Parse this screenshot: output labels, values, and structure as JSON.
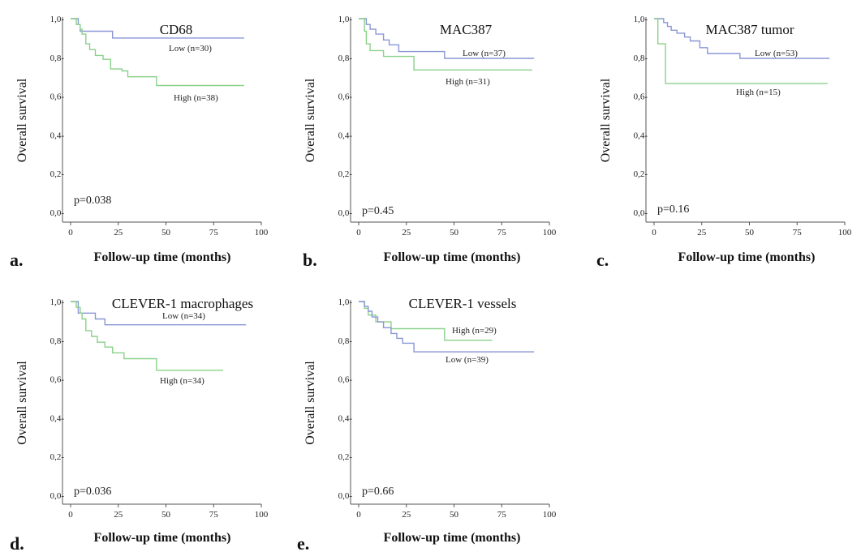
{
  "colors": {
    "low": "#8a96d6",
    "high": "#8ad18a",
    "axis": "#555555"
  },
  "chart_data": [
    {
      "type": "line",
      "panel_letter": "a.",
      "title": "CD68",
      "xlabel": "Follow-up time (months)",
      "ylabel": "Overall survival",
      "xlim": [
        0,
        100
      ],
      "ylim": [
        0,
        1
      ],
      "xticks": [
        "0",
        "25",
        "50",
        "75",
        "100"
      ],
      "yticks": [
        "0,0-",
        "0,2-",
        "0,4-",
        "0,6-",
        "0,8-",
        "1,0-"
      ],
      "p_value": "p=0.038",
      "series": [
        {
          "name": "Low (n=30)",
          "key": "low",
          "x": [
            0,
            4,
            5,
            22,
            91
          ],
          "y": [
            1.0,
            0.97,
            0.935,
            0.9,
            0.9
          ]
        },
        {
          "name": "High (n=38)",
          "key": "high",
          "x": [
            0,
            3,
            5,
            6,
            8,
            10,
            13,
            17,
            21,
            27,
            30,
            38,
            45,
            91
          ],
          "y": [
            1.0,
            0.97,
            0.945,
            0.92,
            0.87,
            0.84,
            0.81,
            0.79,
            0.74,
            0.73,
            0.7,
            0.7,
            0.655,
            0.655
          ]
        }
      ]
    },
    {
      "type": "line",
      "panel_letter": "b.",
      "title": "MAC387",
      "xlabel": "Follow-up time (months)",
      "ylabel": "Overall survival",
      "xlim": [
        0,
        100
      ],
      "ylim": [
        0,
        1
      ],
      "xticks": [
        "0",
        "25",
        "50",
        "75",
        "100"
      ],
      "yticks": [
        "0,0-",
        "0,2-",
        "0,4-",
        "0,6-",
        "0,8-",
        "1,0-"
      ],
      "p_value": "p=0.45",
      "series": [
        {
          "name": "Low (n=37)",
          "key": "low",
          "x": [
            0,
            4,
            6,
            9,
            13,
            16,
            21,
            45,
            92
          ],
          "y": [
            1.0,
            0.97,
            0.945,
            0.92,
            0.89,
            0.865,
            0.83,
            0.795,
            0.795
          ]
        },
        {
          "name": "High (n=31)",
          "key": "high",
          "x": [
            0,
            3,
            4,
            6,
            13,
            29,
            91
          ],
          "y": [
            1.0,
            0.935,
            0.87,
            0.835,
            0.805,
            0.735,
            0.735
          ]
        }
      ]
    },
    {
      "type": "line",
      "panel_letter": "c.",
      "title": "MAC387 tumor",
      "xlabel": "Follow-up time (months)",
      "ylabel": "Overall survival",
      "xlim": [
        0,
        100
      ],
      "ylim": [
        0,
        1
      ],
      "xticks": [
        "0",
        "25",
        "50",
        "75",
        "100"
      ],
      "yticks": [
        "0,0-",
        "0,2-",
        "0,4-",
        "0,6-",
        "0,8-",
        "1,0-"
      ],
      "p_value": "p=0.16",
      "series": [
        {
          "name": "Low (n=53)",
          "key": "low",
          "x": [
            0,
            5,
            7,
            9,
            12,
            16,
            19,
            24,
            28,
            45,
            92
          ],
          "y": [
            1.0,
            0.98,
            0.96,
            0.94,
            0.925,
            0.905,
            0.885,
            0.85,
            0.82,
            0.795,
            0.795
          ]
        },
        {
          "name": "High (n=15)",
          "key": "high",
          "x": [
            0,
            2,
            6,
            91
          ],
          "y": [
            1.0,
            0.87,
            0.665,
            0.665
          ]
        }
      ]
    },
    {
      "type": "line",
      "panel_letter": "d.",
      "title": "CLEVER-1 macrophages",
      "xlabel": "Follow-up time (months)",
      "ylabel": "Overall survival",
      "xlim": [
        0,
        100
      ],
      "ylim": [
        0,
        1
      ],
      "xticks": [
        "0",
        "25",
        "50",
        "75",
        "100"
      ],
      "yticks": [
        "0,0-",
        "0,2-",
        "0,4-",
        "0,6-",
        "0,8-",
        "1,0-"
      ],
      "p_value": "p=0.036",
      "series": [
        {
          "name": "Low (n=34)",
          "key": "low",
          "x": [
            0,
            4,
            13,
            18,
            92
          ],
          "y": [
            1.0,
            0.94,
            0.91,
            0.88,
            0.88
          ]
        },
        {
          "name": "High (n=34)",
          "key": "high",
          "x": [
            0,
            3,
            5,
            6,
            8,
            11,
            14,
            18,
            22,
            28,
            45,
            80
          ],
          "y": [
            1.0,
            0.97,
            0.94,
            0.91,
            0.85,
            0.82,
            0.79,
            0.765,
            0.735,
            0.705,
            0.645,
            0.645
          ]
        }
      ]
    },
    {
      "type": "line",
      "panel_letter": "e.",
      "title": "CLEVER-1 vessels",
      "xlabel": "Follow-up time (months)",
      "ylabel": "Overall survival",
      "xlim": [
        0,
        100
      ],
      "ylim": [
        0,
        1
      ],
      "xticks": [
        "0",
        "25",
        "50",
        "75",
        "100"
      ],
      "yticks": [
        "0,0-",
        "0,2-",
        "0,4-",
        "0,6-",
        "0,8-",
        "1,0-"
      ],
      "p_value": "p=0.66",
      "series": [
        {
          "name": "High (n=29)",
          "key": "high",
          "x": [
            0,
            3,
            5,
            9,
            17,
            45,
            70
          ],
          "y": [
            1.0,
            0.965,
            0.93,
            0.895,
            0.86,
            0.8,
            0.8
          ]
        },
        {
          "name": "Low (n=39)",
          "key": "low",
          "x": [
            0,
            3,
            5,
            7,
            10,
            13,
            17,
            20,
            23,
            29,
            92
          ],
          "y": [
            1.0,
            0.975,
            0.95,
            0.92,
            0.895,
            0.865,
            0.835,
            0.81,
            0.785,
            0.74,
            0.74
          ]
        }
      ]
    }
  ]
}
